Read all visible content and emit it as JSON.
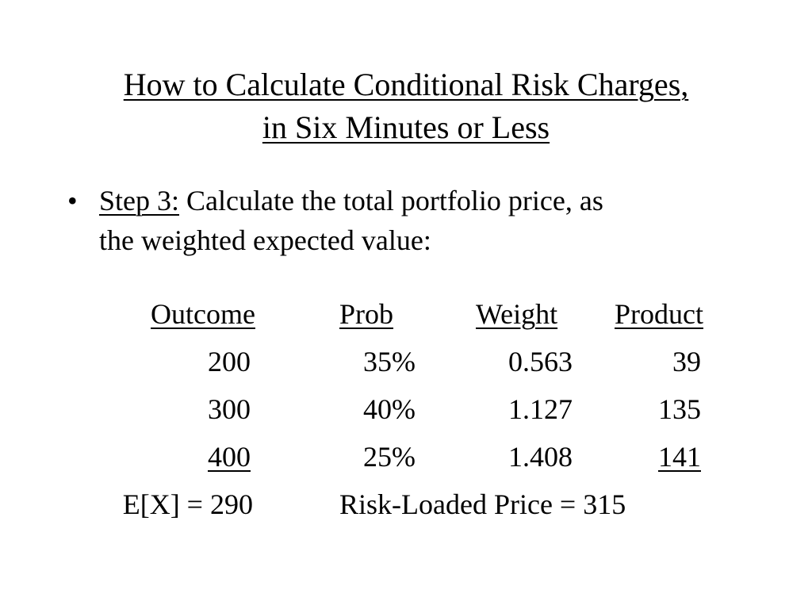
{
  "slide": {
    "title_line1": "How to Calculate Conditional Risk Charges,",
    "title_line2": "in Six Minutes or Less",
    "bullet_char": "•",
    "step_label": "Step 3:",
    "step_text_line1": " Calculate the total portfolio price, as",
    "step_text_line2": "the weighted expected value:"
  },
  "table": {
    "headers": [
      "Outcome",
      "Prob",
      "Weight",
      "Product"
    ],
    "rows": [
      [
        "200",
        "35%",
        "0.563",
        "39"
      ],
      [
        "300",
        "40%",
        "1.127",
        "135"
      ],
      [
        "400",
        "25%",
        "1.408",
        "141"
      ]
    ]
  },
  "summary": {
    "expected_value": "E[X] = 290",
    "risk_loaded_price": "Risk-Loaded Price = 315"
  }
}
